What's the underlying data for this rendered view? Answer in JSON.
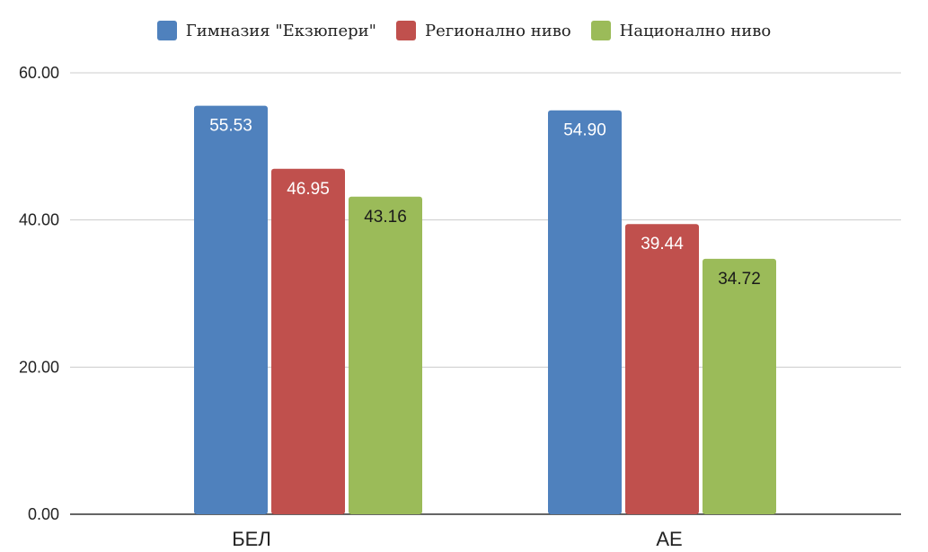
{
  "chart_data": {
    "type": "bar",
    "categories": [
      "БЕЛ",
      "АЕ"
    ],
    "series": [
      {
        "name": "Гимназия \"Екзюпери\"",
        "color": "#4f81bd",
        "label_color": "#ffffff",
        "values": [
          55.53,
          54.9
        ]
      },
      {
        "name": "Регионално ниво",
        "color": "#c0504d",
        "label_color": "#ffffff",
        "values": [
          46.95,
          39.44
        ]
      },
      {
        "name": "Национално ниво",
        "color": "#9bbb59",
        "label_color": "#1a1a1a",
        "values": [
          43.16,
          34.72
        ]
      }
    ],
    "value_labels": [
      [
        "55.53",
        "54.90"
      ],
      [
        "46.95",
        "39.44"
      ],
      [
        "43.16",
        "34.72"
      ]
    ],
    "yticks": [
      "0.00",
      "20.00",
      "40.00",
      "60.00"
    ],
    "ylim": [
      0,
      60
    ],
    "grid": true,
    "legend_position": "top-center",
    "title": "",
    "xlabel": "",
    "ylabel": ""
  }
}
